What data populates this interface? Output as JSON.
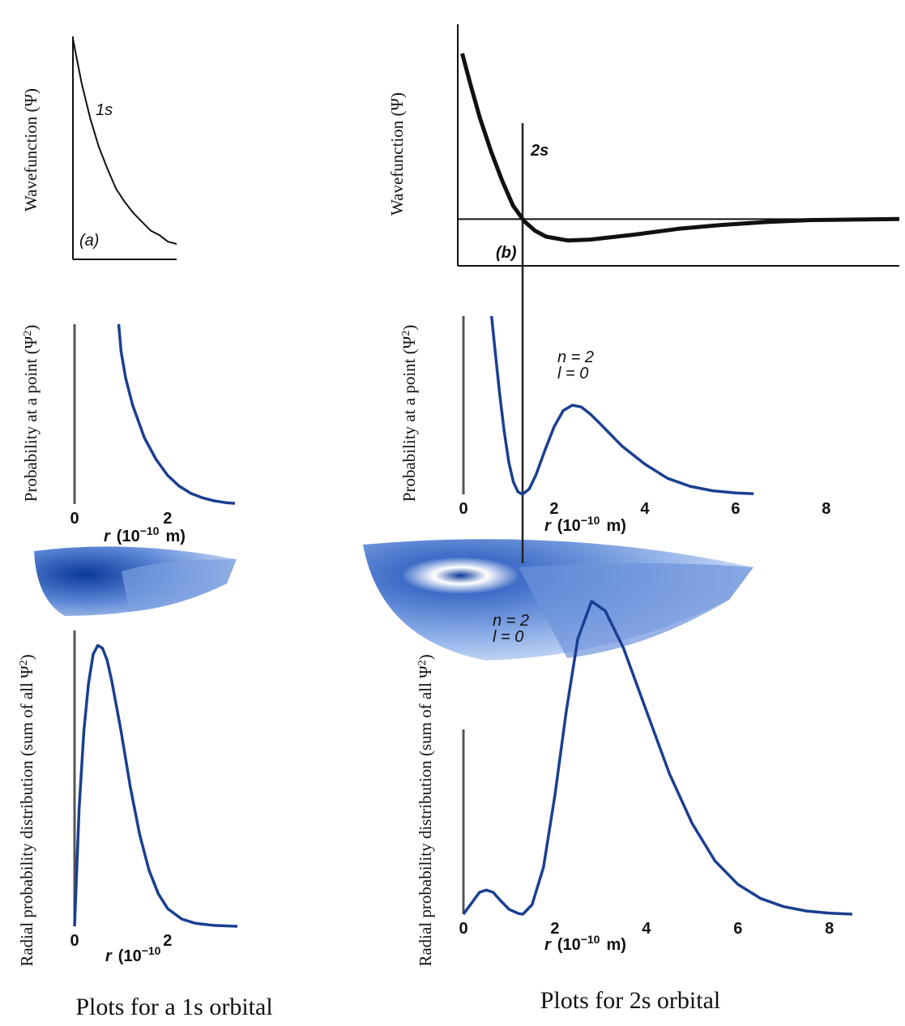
{
  "chart_data": [
    {
      "type": "line",
      "ylabel": [
        "Wavefunction (Ψ)"
      ],
      "annotations": [
        "1s",
        "(a)"
      ],
      "color": "#111111",
      "x": [
        0,
        0.25,
        0.5,
        0.75,
        1,
        1.25,
        1.5,
        1.75,
        2,
        2.25,
        2.5,
        2.75,
        3
      ],
      "values": [
        1,
        0.8,
        0.64,
        0.51,
        0.41,
        0.32,
        0.26,
        0.21,
        0.17,
        0.13,
        0.11,
        0.08,
        0.07
      ],
      "xlim": [
        0,
        3
      ],
      "ylim": [
        0,
        1
      ]
    },
    {
      "type": "line",
      "ylabel": [
        "Wavefunction (Ψ)"
      ],
      "annotations": [
        "2s",
        "(b)"
      ],
      "color": "#111111",
      "x": [
        0.1,
        0.3,
        0.5,
        0.75,
        1,
        1.25,
        1.5,
        1.75,
        2,
        2.5,
        3,
        4,
        5,
        6,
        7,
        8,
        10
      ],
      "values": [
        0.85,
        0.68,
        0.52,
        0.35,
        0.2,
        0.07,
        -0.01,
        -0.06,
        -0.09,
        -0.11,
        -0.105,
        -0.08,
        -0.05,
        -0.03,
        -0.015,
        -0.005,
        0
      ],
      "xlim": [
        0,
        10
      ],
      "ylim": [
        -0.24,
        1
      ]
    },
    {
      "type": "line",
      "ylabel": [
        "Probability at a point (Ψ",
        "2",
        ")"
      ],
      "xlabel": [
        "r",
        "(10",
        "−10",
        "m)"
      ],
      "color": "#1a3f91",
      "x": [
        0.95,
        1.0,
        1.1,
        1.25,
        1.5,
        1.75,
        2,
        2.25,
        2.5,
        2.75,
        3,
        3.25,
        3.45
      ],
      "values": [
        1,
        0.85,
        0.7,
        0.55,
        0.37,
        0.25,
        0.16,
        0.1,
        0.06,
        0.035,
        0.018,
        0.008,
        0.004
      ],
      "xlim": [
        0,
        3.45
      ],
      "ylim": [
        0,
        1
      ],
      "xticks": [
        0,
        2
      ]
    },
    {
      "type": "line",
      "ylabel": [
        "Probability at a point (Ψ",
        "2",
        ")"
      ],
      "xlabel": [
        "r",
        "(10",
        "−10",
        "m)"
      ],
      "annotations": [
        "n = 2",
        "l = 0"
      ],
      "color": "#1a3f91",
      "x": [
        0.62,
        0.7,
        0.8,
        0.9,
        1.0,
        1.1,
        1.2,
        1.3,
        1.45,
        1.6,
        1.8,
        2.0,
        2.2,
        2.4,
        2.6,
        2.8,
        3.0,
        3.5,
        4,
        4.5,
        5,
        5.5,
        6,
        6.4
      ],
      "values": [
        1,
        0.8,
        0.56,
        0.35,
        0.18,
        0.07,
        0.015,
        0,
        0.03,
        0.11,
        0.25,
        0.38,
        0.47,
        0.5,
        0.49,
        0.45,
        0.4,
        0.27,
        0.17,
        0.09,
        0.045,
        0.02,
        0.008,
        0.003
      ],
      "xlim": [
        0,
        9.7
      ],
      "ylim": [
        0,
        1
      ],
      "xticks": [
        0,
        2,
        4,
        6,
        8
      ]
    },
    {
      "type": "line",
      "ylabel": [
        "Radial probability distribution (sum of all Ψ",
        "2",
        ")"
      ],
      "xlabel": [
        "r",
        "(10",
        "−10"
      ],
      "color": "#1a3f91",
      "x": [
        0,
        0.1,
        0.2,
        0.3,
        0.4,
        0.5,
        0.6,
        0.7,
        0.8,
        1.0,
        1.2,
        1.4,
        1.6,
        1.8,
        2.0,
        2.3,
        2.6,
        3,
        3.5
      ],
      "values": [
        0,
        0.4,
        0.66,
        0.82,
        0.92,
        0.95,
        0.94,
        0.9,
        0.83,
        0.66,
        0.47,
        0.31,
        0.19,
        0.11,
        0.06,
        0.025,
        0.01,
        0.003,
        0
      ],
      "xlim": [
        0,
        3.5
      ],
      "ylim": [
        0,
        1
      ],
      "xticks": [
        0,
        2
      ]
    },
    {
      "type": "line",
      "ylabel": [
        "Radial probability distribution (sum of all Ψ",
        "2",
        ")"
      ],
      "xlabel": [
        "r",
        "(10",
        "−10",
        "m)"
      ],
      "annotations": [
        "n = 2",
        "l = 0"
      ],
      "color": "#1a3f91",
      "x": [
        0,
        0.2,
        0.35,
        0.5,
        0.65,
        0.8,
        1.0,
        1.2,
        1.3,
        1.5,
        1.75,
        2,
        2.25,
        2.5,
        2.8,
        3.1,
        3.5,
        4,
        4.5,
        5,
        5.5,
        6,
        6.5,
        7,
        7.5,
        8,
        8.5
      ],
      "values": [
        0,
        0.04,
        0.07,
        0.077,
        0.07,
        0.045,
        0.015,
        0.002,
        0,
        0.03,
        0.15,
        0.38,
        0.65,
        0.88,
        1,
        0.97,
        0.85,
        0.65,
        0.45,
        0.29,
        0.17,
        0.095,
        0.05,
        0.024,
        0.01,
        0.003,
        0
      ],
      "xlim": [
        0,
        9.6
      ],
      "ylim": [
        0,
        1
      ],
      "xticks": [
        0,
        2,
        4,
        6,
        8
      ]
    }
  ],
  "captions": [
    "Plots for a 1s orbital",
    "Plots for 2s orbital"
  ]
}
